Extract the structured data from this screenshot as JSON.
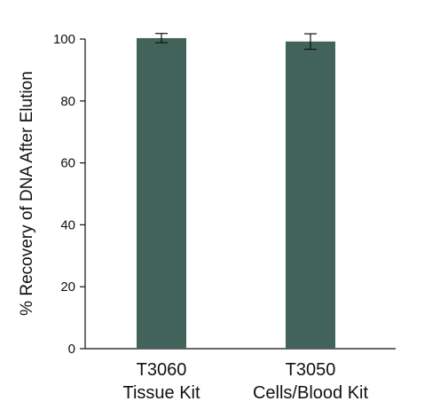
{
  "chart_data": {
    "type": "bar",
    "categories": [
      [
        "T3060",
        "Tissue Kit"
      ],
      [
        "T3050",
        "Cells/Blood Kit"
      ]
    ],
    "values": [
      100.3,
      99.2
    ],
    "errors": [
      1.5,
      2.5
    ],
    "ylabel": "% Recovery of DNA After Elution",
    "ylim": [
      0,
      100
    ],
    "yticks": [
      0,
      20,
      40,
      60,
      80,
      100
    ],
    "grid": false,
    "bar_color": "#41635a"
  }
}
